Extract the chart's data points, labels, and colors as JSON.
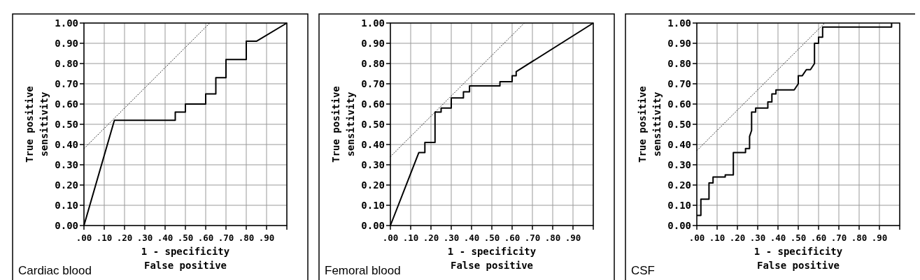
{
  "chart_data": [
    {
      "type": "line",
      "title": "Cardiac blood",
      "xlabel": "1 - specificity\nFalse positive",
      "ylabel": "True positive\nsensitivity",
      "xlim": [
        0,
        1
      ],
      "ylim": [
        0,
        1
      ],
      "grid": true,
      "xticks": [
        {
          "value": 0,
          "label": ".00"
        },
        {
          "value": 0.1,
          "label": ".10"
        },
        {
          "value": 0.2,
          "label": ".20"
        },
        {
          "value": 0.3,
          "label": ".30"
        },
        {
          "value": 0.4,
          "label": ".40"
        },
        {
          "value": 0.5,
          "label": ".50"
        },
        {
          "value": 0.6,
          "label": ".60"
        },
        {
          "value": 0.7,
          "label": ".70"
        },
        {
          "value": 0.8,
          "label": ".80"
        },
        {
          "value": 0.9,
          "label": ".90"
        },
        {
          "value": 1,
          "label": null
        }
      ],
      "yticks": [
        {
          "value": 0,
          "label": "0.00"
        },
        {
          "value": 0.1,
          "label": "0.10"
        },
        {
          "value": 0.2,
          "label": "0.20"
        },
        {
          "value": 0.3,
          "label": "0.30"
        },
        {
          "value": 0.4,
          "label": "0.40"
        },
        {
          "value": 0.5,
          "label": "0.50"
        },
        {
          "value": 0.6,
          "label": "0.60"
        },
        {
          "value": 0.7,
          "label": "0.70"
        },
        {
          "value": 0.8,
          "label": "0.80"
        },
        {
          "value": 0.9,
          "label": "0.90"
        },
        {
          "value": 1,
          "label": "1.00"
        }
      ],
      "series": [
        {
          "color": "#000000",
          "line_style": "solid",
          "x": [
            0,
            0.15,
            0.45,
            0.45,
            0.5,
            0.5,
            0.6,
            0.6,
            0.65,
            0.65,
            0.7,
            0.7,
            0.8,
            0.8,
            0.85,
            1
          ],
          "values": [
            0,
            0.52,
            0.52,
            0.56,
            0.56,
            0.6,
            0.6,
            0.65,
            0.65,
            0.73,
            0.73,
            0.82,
            0.82,
            0.91,
            0.91,
            1
          ]
        },
        {
          "color": "#000000",
          "line_style": "dotted",
          "x": [
            0,
            0.62
          ],
          "values": [
            0.38,
            1
          ]
        }
      ]
    },
    {
      "type": "line",
      "title": "Femoral blood",
      "xlabel": "1 - specificity\nFalse positive",
      "ylabel": "True positive\nsensitivity",
      "xlim": [
        0,
        1
      ],
      "ylim": [
        0,
        1
      ],
      "grid": true,
      "xticks": [
        {
          "value": 0,
          "label": ".00"
        },
        {
          "value": 0.1,
          "label": ".10"
        },
        {
          "value": 0.2,
          "label": ".20"
        },
        {
          "value": 0.3,
          "label": ".30"
        },
        {
          "value": 0.4,
          "label": ".40"
        },
        {
          "value": 0.5,
          "label": ".50"
        },
        {
          "value": 0.6,
          "label": ".60"
        },
        {
          "value": 0.7,
          "label": ".70"
        },
        {
          "value": 0.8,
          "label": ".80"
        },
        {
          "value": 0.9,
          "label": ".90"
        },
        {
          "value": 1,
          "label": null
        }
      ],
      "yticks": [
        {
          "value": 0,
          "label": "0.00"
        },
        {
          "value": 0.1,
          "label": "0.10"
        },
        {
          "value": 0.2,
          "label": "0.20"
        },
        {
          "value": 0.3,
          "label": "0.30"
        },
        {
          "value": 0.4,
          "label": "0.40"
        },
        {
          "value": 0.5,
          "label": "0.50"
        },
        {
          "value": 0.6,
          "label": "0.60"
        },
        {
          "value": 0.7,
          "label": "0.70"
        },
        {
          "value": 0.8,
          "label": "0.80"
        },
        {
          "value": 0.9,
          "label": "0.90"
        },
        {
          "value": 1,
          "label": "1.00"
        }
      ],
      "series": [
        {
          "color": "#000000",
          "line_style": "solid",
          "x": [
            0,
            0.14,
            0.17,
            0.17,
            0.22,
            0.22,
            0.25,
            0.25,
            0.3,
            0.3,
            0.36,
            0.36,
            0.39,
            0.39,
            0.54,
            0.54,
            0.6,
            0.6,
            0.62,
            0.62,
            1
          ],
          "values": [
            0,
            0.36,
            0.36,
            0.41,
            0.41,
            0.56,
            0.56,
            0.58,
            0.58,
            0.63,
            0.63,
            0.66,
            0.66,
            0.69,
            0.69,
            0.71,
            0.71,
            0.74,
            0.74,
            0.76,
            1
          ]
        },
        {
          "color": "#000000",
          "line_style": "dotted",
          "x": [
            0,
            0.66
          ],
          "values": [
            0.34,
            1
          ]
        }
      ]
    },
    {
      "type": "line",
      "title": "CSF",
      "xlabel": "1 - specificity\nFalse positive",
      "ylabel": "True positive\nsensitivity",
      "xlim": [
        0,
        1
      ],
      "ylim": [
        0,
        1
      ],
      "grid": true,
      "xticks": [
        {
          "value": 0,
          "label": ".00"
        },
        {
          "value": 0.1,
          "label": ".10"
        },
        {
          "value": 0.2,
          "label": ".20"
        },
        {
          "value": 0.3,
          "label": ".30"
        },
        {
          "value": 0.4,
          "label": ".40"
        },
        {
          "value": 0.5,
          "label": ".50"
        },
        {
          "value": 0.6,
          "label": ".60"
        },
        {
          "value": 0.7,
          "label": ".70"
        },
        {
          "value": 0.8,
          "label": ".80"
        },
        {
          "value": 0.9,
          "label": ".90"
        },
        {
          "value": 1,
          "label": null
        }
      ],
      "yticks": [
        {
          "value": 0,
          "label": "0.00"
        },
        {
          "value": 0.1,
          "label": "0.10"
        },
        {
          "value": 0.2,
          "label": "0.20"
        },
        {
          "value": 0.3,
          "label": "0.30"
        },
        {
          "value": 0.4,
          "label": "0.40"
        },
        {
          "value": 0.5,
          "label": "0.50"
        },
        {
          "value": 0.6,
          "label": "0.60"
        },
        {
          "value": 0.7,
          "label": "0.70"
        },
        {
          "value": 0.8,
          "label": "0.80"
        },
        {
          "value": 0.9,
          "label": "0.90"
        },
        {
          "value": 1,
          "label": "1.00"
        }
      ],
      "series": [
        {
          "color": "#000000",
          "line_style": "solid",
          "x": [
            0,
            0.02,
            0.02,
            0.06,
            0.06,
            0.08,
            0.08,
            0.14,
            0.14,
            0.18,
            0.18,
            0.24,
            0.24,
            0.26,
            0.26,
            0.27,
            0.27,
            0.29,
            0.29,
            0.35,
            0.35,
            0.37,
            0.37,
            0.39,
            0.39,
            0.48,
            0.5,
            0.5,
            0.52,
            0.54,
            0.56,
            0.58,
            0.58,
            0.6,
            0.6,
            0.62,
            0.62,
            0.96,
            0.96
          ],
          "values": [
            0.05,
            0.05,
            0.13,
            0.13,
            0.21,
            0.21,
            0.24,
            0.24,
            0.25,
            0.25,
            0.36,
            0.36,
            0.38,
            0.38,
            0.44,
            0.47,
            0.56,
            0.56,
            0.58,
            0.58,
            0.61,
            0.61,
            0.65,
            0.65,
            0.67,
            0.67,
            0.7,
            0.74,
            0.74,
            0.77,
            0.77,
            0.8,
            0.9,
            0.9,
            0.93,
            0.93,
            0.98,
            0.98,
            1
          ]
        },
        {
          "color": "#000000",
          "line_style": "dotted",
          "x": [
            0,
            0.63
          ],
          "values": [
            0.37,
            1
          ]
        }
      ]
    }
  ]
}
